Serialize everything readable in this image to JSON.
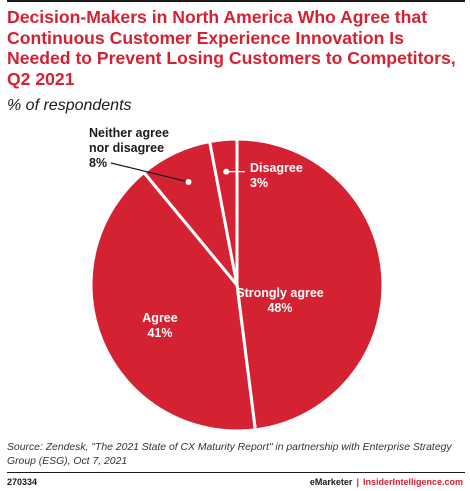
{
  "header": {
    "title": "Decision-Makers in North America Who Agree that Continuous Customer Experience Innovation Is Needed to Prevent Losing Customers to Competitors, Q2 2021",
    "subtitle": "% of respondents"
  },
  "chart_data": {
    "type": "pie",
    "categories": [
      "Strongly agree",
      "Agree",
      "Neither agree nor disagree",
      "Disagree"
    ],
    "values": [
      48,
      41,
      8,
      3
    ],
    "value_labels": [
      "48%",
      "41%",
      "8%",
      "3%"
    ],
    "slice_color": "#d52233",
    "separator_color": "#ffffff",
    "start": "12 o'clock, clockwise"
  },
  "footer": {
    "source": "Source: Zendesk, \"The 2021 State of CX Maturity Report\" in partnership with Enterprise Strategy Group (ESG), Oct 7, 2021",
    "chart_id": "270334",
    "brand": "eMarketer",
    "separator": "|",
    "site": "InsiderIntelligence.com"
  }
}
